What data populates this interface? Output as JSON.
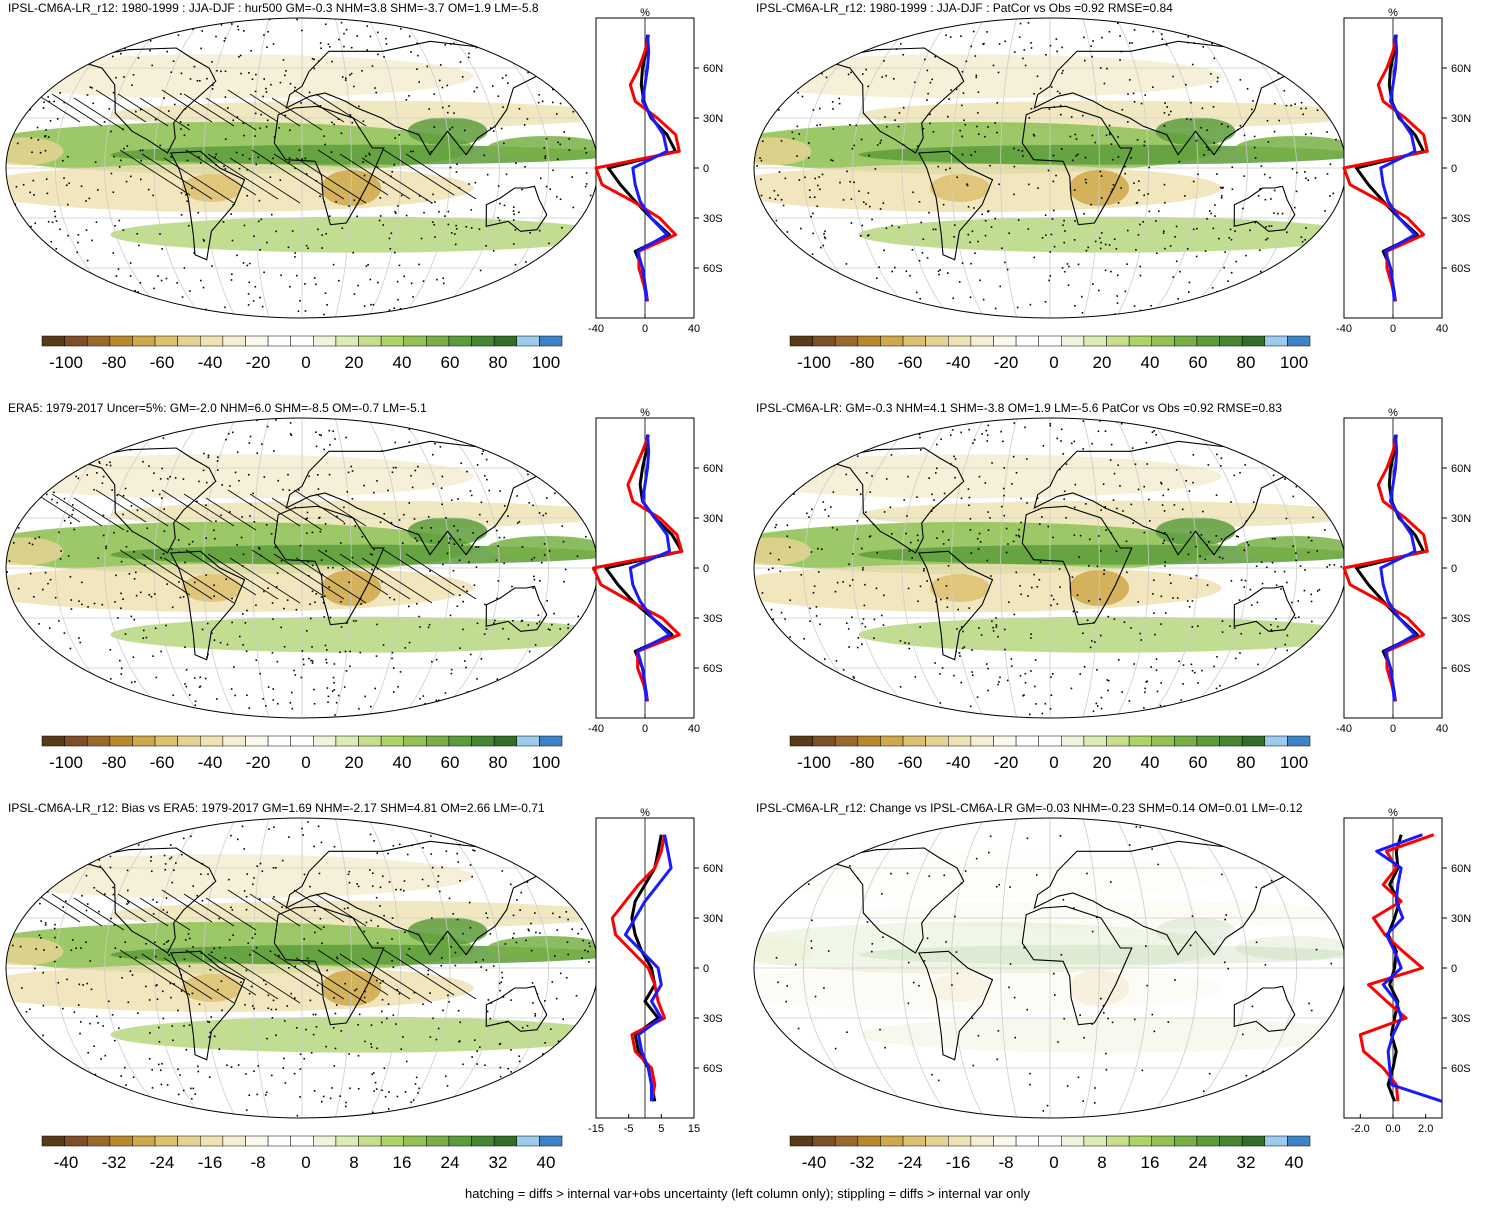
{
  "colors": {
    "brown_green_scale": [
      "#5b3a17",
      "#7c5024",
      "#9a6a2c",
      "#b8882e",
      "#cfa84a",
      "#dcc070",
      "#e6d292",
      "#eee2b2",
      "#f5eed4",
      "#fbf8ee",
      "#ffffff",
      "#ffffff",
      "#eef5dc",
      "#dbecb4",
      "#c6e08e",
      "#acd26c",
      "#92c256",
      "#78b046",
      "#5d9c3b",
      "#478631",
      "#336e26",
      "#9ccbee",
      "#3d82c6"
    ],
    "profile_model": "#000000",
    "profile_obs": "#ff0000",
    "profile_other": "#1a1aff",
    "hatch": "#000000"
  },
  "panels": [
    {
      "title": "IPSL-CM6A-LR_r12: 1980-1999 : JJA-DJF : hur500 GM=-0.3 NHM=3.8 SHM=-3.7 OM=1.9 LM=-5.8",
      "colorbar_labels": [
        "-100",
        "-80",
        "-60",
        "-40",
        "-20",
        "0",
        "20",
        "40",
        "60",
        "80",
        "100"
      ],
      "profile_unit": "%",
      "profile_lat_labels": [
        "60N",
        "30N",
        "0",
        "30S",
        "60S"
      ],
      "profile_x_labels": [
        "-40",
        "0",
        "40"
      ],
      "profile_xlim": [
        -40,
        40
      ],
      "hatching": true
    },
    {
      "title": "IPSL-CM6A-LR_r12: 1980-1999 : JJA-DJF : PatCor vs Obs =0.92 RMSE=0.84",
      "colorbar_labels": [
        "-100",
        "-80",
        "-60",
        "-40",
        "-20",
        "0",
        "20",
        "40",
        "60",
        "80",
        "100"
      ],
      "profile_unit": "%",
      "profile_lat_labels": [
        "60N",
        "30N",
        "0",
        "30S",
        "60S"
      ],
      "profile_x_labels": [
        "-40",
        "0",
        "40"
      ],
      "profile_xlim": [
        -40,
        40
      ],
      "hatching": false
    },
    {
      "title": "ERA5: 1979-2017 Uncer=5%: GM=-2.0 NHM=6.0 SHM=-8.5 OM=-0.7 LM=-5.1",
      "colorbar_labels": [
        "-100",
        "-80",
        "-60",
        "-40",
        "-20",
        "0",
        "20",
        "40",
        "60",
        "80",
        "100"
      ],
      "profile_unit": "%",
      "profile_lat_labels": [
        "60N",
        "30N",
        "0",
        "30S",
        "60S"
      ],
      "profile_x_labels": [
        "-40",
        "0",
        "40"
      ],
      "profile_xlim": [
        -40,
        40
      ],
      "hatching": true
    },
    {
      "title": "IPSL-CM6A-LR: GM=-0.3 NHM=4.1 SHM=-3.8 OM=1.9 LM=-5.6 PatCor vs Obs =0.92 RMSE=0.83",
      "colorbar_labels": [
        "-100",
        "-80",
        "-60",
        "-40",
        "-20",
        "0",
        "20",
        "40",
        "60",
        "80",
        "100"
      ],
      "profile_unit": "%",
      "profile_lat_labels": [
        "60N",
        "30N",
        "0",
        "30S",
        "60S"
      ],
      "profile_x_labels": [
        "-40",
        "0",
        "40"
      ],
      "profile_xlim": [
        -40,
        40
      ],
      "hatching": false
    },
    {
      "title": "IPSL-CM6A-LR_r12: Bias vs ERA5: 1979-2017 GM=1.69 NHM=-2.17 SHM=4.81 OM=2.66 LM=-0.71",
      "colorbar_labels": [
        "-40",
        "-32",
        "-24",
        "-16",
        "-8",
        "0",
        "8",
        "16",
        "24",
        "32",
        "40"
      ],
      "profile_unit": "%",
      "profile_lat_labels": [
        "60N",
        "30N",
        "0",
        "30S",
        "60S"
      ],
      "profile_x_labels": [
        "-15",
        "-5",
        "5",
        "15"
      ],
      "profile_xlim": [
        -15,
        15
      ],
      "hatching": true
    },
    {
      "title": "IPSL-CM6A-LR_r12: Change vs IPSL-CM6A-LR GM=-0.03 NHM=-0.23 SHM=0.14 OM=0.01 LM=-0.12",
      "colorbar_labels": [
        "-40",
        "-32",
        "-24",
        "-16",
        "-8",
        "0",
        "8",
        "16",
        "24",
        "32",
        "40"
      ],
      "profile_unit": "%",
      "profile_lat_labels": [
        "60N",
        "30N",
        "0",
        "30S",
        "60S"
      ],
      "profile_x_labels": [
        "-2.0",
        "0.0",
        "2.0"
      ],
      "profile_xlim": [
        -3,
        3
      ],
      "hatching": false
    }
  ],
  "chart_data": [
    {
      "type": "line",
      "title": "IPSL-CM6A-LR_r12: 1980-1999 : JJA-DJF : hur500 GM=-0.3 NHM=3.8 SHM=-3.7 OM=1.9 LM=-5.8",
      "ylabel": "",
      "xlabel": "%",
      "xlim": [
        -40,
        40
      ],
      "ylim": [
        -80,
        80
      ],
      "y": [
        80,
        70,
        60,
        50,
        40,
        30,
        20,
        10,
        0,
        -10,
        -20,
        -30,
        -40,
        -50,
        -60,
        -70,
        -80
      ],
      "series": [
        {
          "values": [
            2,
            1,
            -2,
            -3,
            -1,
            5,
            18,
            25,
            -30,
            -20,
            -8,
            5,
            20,
            -8,
            -2,
            0,
            2
          ]
        },
        {
          "values": [
            3,
            0,
            -5,
            -12,
            -8,
            10,
            25,
            28,
            -40,
            -35,
            -10,
            12,
            25,
            -5,
            -5,
            -1,
            2
          ]
        },
        {
          "values": [
            2,
            3,
            2,
            0,
            -2,
            6,
            15,
            18,
            -10,
            -8,
            -4,
            5,
            18,
            -6,
            -2,
            0,
            1
          ]
        }
      ]
    },
    {
      "type": "line",
      "title": "IPSL-CM6A-LR_r12: 1980-1999 : JJA-DJF : PatCor vs Obs =0.92 RMSE=0.84",
      "ylabel": "",
      "xlabel": "%",
      "xlim": [
        -40,
        40
      ],
      "ylim": [
        -80,
        80
      ],
      "y": [
        80,
        70,
        60,
        50,
        40,
        30,
        20,
        10,
        0,
        -10,
        -20,
        -30,
        -40,
        -50,
        -60,
        -70,
        -80
      ],
      "series": [
        {
          "values": [
            2,
            1,
            -2,
            -3,
            -1,
            5,
            18,
            25,
            -30,
            -20,
            -8,
            5,
            20,
            -8,
            -2,
            0,
            2
          ]
        },
        {
          "values": [
            3,
            0,
            -5,
            -12,
            -8,
            10,
            25,
            28,
            -40,
            -35,
            -10,
            12,
            25,
            -5,
            -5,
            -1,
            2
          ]
        },
        {
          "values": [
            2,
            3,
            2,
            0,
            -2,
            6,
            15,
            18,
            -10,
            -8,
            -4,
            5,
            18,
            -6,
            -2,
            0,
            1
          ]
        }
      ]
    },
    {
      "type": "line",
      "title": "ERA5: 1979-2017 Uncer=5%: GM=-2.0 NHM=6.0 SHM=-8.5 OM=-0.7 LM=-5.1",
      "ylabel": "",
      "xlabel": "%",
      "xlim": [
        -40,
        40
      ],
      "ylim": [
        -80,
        80
      ],
      "y": [
        80,
        70,
        60,
        50,
        40,
        30,
        20,
        10,
        0,
        -10,
        -20,
        -30,
        -40,
        -50,
        -60,
        -70,
        -80
      ],
      "series": [
        {
          "values": [
            2,
            1,
            -2,
            -4,
            -2,
            8,
            22,
            30,
            -32,
            -22,
            -10,
            6,
            22,
            -8,
            -2,
            0,
            2
          ]
        },
        {
          "values": [
            3,
            -2,
            -8,
            -14,
            -10,
            12,
            26,
            30,
            -42,
            -36,
            -12,
            14,
            28,
            -6,
            -6,
            -1,
            2
          ]
        },
        {
          "values": [
            2,
            3,
            2,
            0,
            -2,
            8,
            18,
            20,
            -12,
            -10,
            -4,
            6,
            20,
            -6,
            -2,
            0,
            1
          ]
        }
      ]
    },
    {
      "type": "line",
      "title": "IPSL-CM6A-LR: GM=-0.3 NHM=4.1 SHM=-3.8 OM=1.9 LM=-5.6 PatCor vs Obs =0.92 RMSE=0.83",
      "ylabel": "",
      "xlabel": "%",
      "xlim": [
        -40,
        40
      ],
      "ylim": [
        -80,
        80
      ],
      "y": [
        80,
        70,
        60,
        50,
        40,
        30,
        20,
        10,
        0,
        -10,
        -20,
        -30,
        -40,
        -50,
        -60,
        -70,
        -80
      ],
      "series": [
        {
          "values": [
            2,
            1,
            -2,
            -3,
            -1,
            5,
            18,
            25,
            -30,
            -20,
            -8,
            5,
            20,
            -8,
            -2,
            0,
            2
          ]
        },
        {
          "values": [
            3,
            0,
            -5,
            -12,
            -8,
            10,
            25,
            28,
            -40,
            -35,
            -10,
            12,
            25,
            -5,
            -5,
            -1,
            2
          ]
        },
        {
          "values": [
            2,
            3,
            2,
            0,
            -2,
            6,
            15,
            18,
            -10,
            -8,
            -4,
            5,
            18,
            -6,
            -2,
            0,
            1
          ]
        }
      ]
    },
    {
      "type": "line",
      "title": "IPSL-CM6A-LR_r12: Bias vs ERA5: 1979-2017 GM=1.69 NHM=-2.17 SHM=4.81 OM=2.66 LM=-0.71",
      "ylabel": "",
      "xlabel": "%",
      "xlim": [
        -15,
        15
      ],
      "ylim": [
        -80,
        80
      ],
      "y": [
        80,
        70,
        60,
        50,
        40,
        30,
        20,
        10,
        0,
        -10,
        -20,
        -30,
        -40,
        -50,
        -60,
        -70,
        -80
      ],
      "series": [
        {
          "values": [
            5,
            4,
            3,
            0,
            -3,
            -4,
            -3,
            -1,
            2,
            3,
            0,
            4,
            -3,
            -2,
            1,
            2,
            3
          ]
        },
        {
          "values": [
            6,
            5,
            3,
            -2,
            -6,
            -10,
            -9,
            -4,
            1,
            3,
            4,
            6,
            -4,
            -3,
            2,
            3,
            2
          ]
        },
        {
          "values": [
            6,
            7,
            8,
            4,
            0,
            -3,
            -6,
            -1,
            4,
            5,
            2,
            5,
            -2,
            -1,
            1,
            2,
            2
          ]
        }
      ]
    },
    {
      "type": "line",
      "title": "IPSL-CM6A-LR_r12: Change vs IPSL-CM6A-LR GM=-0.03 NHM=-0.23 SHM=0.14 OM=0.01 LM=-0.12",
      "ylabel": "",
      "xlabel": "%",
      "xlim": [
        -3,
        3
      ],
      "ylim": [
        -80,
        80
      ],
      "y": [
        80,
        70,
        60,
        50,
        40,
        30,
        20,
        10,
        0,
        -10,
        -20,
        -30,
        -40,
        -50,
        -60,
        -70,
        -80
      ],
      "series": [
        {
          "values": [
            0.5,
            0.2,
            0.3,
            -0.2,
            0.4,
            0.1,
            -0.3,
            0.2,
            0.1,
            -0.2,
            0.3,
            0.1,
            -0.1,
            0.2,
            0,
            -0.3,
            0.1
          ]
        },
        {
          "values": [
            2.5,
            -0.4,
            0.2,
            -0.6,
            0.5,
            -1.2,
            -0.5,
            0.6,
            1.8,
            -1.5,
            -0.4,
            0.8,
            -2.0,
            -1.8,
            -0.6,
            0.2,
            0.3
          ]
        },
        {
          "values": [
            1.8,
            -1.0,
            0.5,
            0.3,
            0.2,
            0.6,
            -0.4,
            0.1,
            0.5,
            -0.6,
            0.2,
            0.5,
            0.0,
            -0.3,
            -0.2,
            -0.1,
            3.0
          ]
        }
      ]
    }
  ],
  "footnote": "hatching = diffs > internal var+obs uncertainty (left column only); stippling = diffs > internal var only"
}
